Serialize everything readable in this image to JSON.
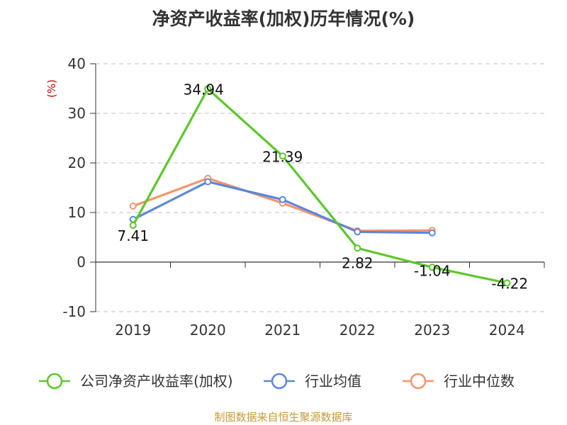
{
  "chart_data": {
    "type": "line",
    "title": "净资产收益率(加权)历年情况(%)",
    "ylabel": "(%)",
    "xlabel": "",
    "categories": [
      "2019",
      "2020",
      "2021",
      "2022",
      "2023",
      "2024"
    ],
    "ylim": [
      -10,
      40
    ],
    "yticks": [
      -10,
      0,
      10,
      20,
      30,
      40
    ],
    "grid": true,
    "legend_position": "bottom",
    "series": [
      {
        "name": "公司净资产收益率(加权)",
        "color": "#5cc72a",
        "values": [
          7.41,
          34.94,
          21.39,
          2.82,
          -1.04,
          -4.22
        ],
        "labels": [
          "7.41",
          "34.94",
          "21.39",
          "2.82",
          "-1.04",
          "-4.22"
        ]
      },
      {
        "name": "行业均值",
        "color": "#5b87dc",
        "values": [
          8.6,
          16.2,
          12.6,
          6.1,
          5.9,
          null
        ]
      },
      {
        "name": "行业中位数",
        "color": "#f2956b",
        "values": [
          11.3,
          16.9,
          11.9,
          6.3,
          6.4,
          null
        ]
      }
    ],
    "source": "制图数据来自恒生聚源数据库"
  }
}
